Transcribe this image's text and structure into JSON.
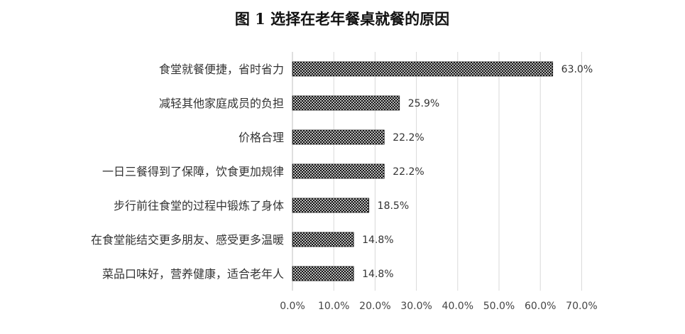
{
  "chart_data": {
    "type": "bar",
    "orientation": "horizontal",
    "title": "图 1 选择在老年餐桌就餐的原因",
    "xlabel": "",
    "ylabel": "",
    "xlim": [
      0,
      70
    ],
    "xticks": [
      "0.0%",
      "10.0%",
      "20.0%",
      "30.0%",
      "40.0%",
      "50.0%",
      "60.0%",
      "70.0%"
    ],
    "grid": true,
    "legend": "none",
    "bar_fill": "crosshatch-pattern",
    "bar_color": "#000000",
    "categories": [
      "食堂就餐便捷，省时省力",
      "减轻其他家庭成员的负担",
      "价格合理",
      "一日三餐得到了保障，饮食更加规律",
      "步行前往食堂的过程中锻炼了身体",
      "在食堂能结交更多朋友、感受更多温暖",
      "菜品口味好，营养健康，适合老年人"
    ],
    "values": [
      63.0,
      25.9,
      22.2,
      22.2,
      18.5,
      14.8,
      14.8
    ],
    "data_labels": [
      "63.0%",
      "25.9%",
      "22.2%",
      "22.2%",
      "18.5%",
      "14.8%",
      "14.8%"
    ]
  }
}
